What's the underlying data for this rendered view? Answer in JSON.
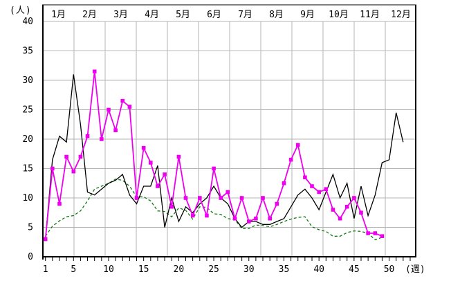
{
  "chart_data": {
    "type": "line",
    "title": "",
    "ylabel_unit": "(人)",
    "xlabel_unit": "(週)",
    "ylim": [
      0,
      40
    ],
    "xlim_weeks": [
      1,
      53
    ],
    "grid": true,
    "legend": "none",
    "y_ticks": [
      0,
      5,
      10,
      15,
      20,
      25,
      30,
      35,
      40
    ],
    "x_ticks": [
      1,
      5,
      10,
      15,
      20,
      25,
      30,
      35,
      40,
      45,
      50
    ],
    "month_labels": [
      "1月",
      "2月",
      "3月",
      "4月",
      "5月",
      "6月",
      "7月",
      "8月",
      "9月",
      "10月",
      "11月",
      "12月"
    ],
    "series": [
      {
        "name": "black-solid-series",
        "color": "#000000",
        "style": "solid",
        "marker": "none",
        "start_week": 1,
        "values": [
          3,
          16.5,
          20.5,
          19.5,
          31,
          22.5,
          11,
          10.5,
          11.5,
          12.5,
          13,
          14,
          10.5,
          9,
          12,
          12,
          15.5,
          5,
          10,
          6,
          8.5,
          7.5,
          9,
          10,
          12,
          10,
          9,
          6.5,
          5,
          6,
          6,
          5.5,
          5.5,
          6,
          6.5,
          8.5,
          10.5,
          11.5,
          10,
          8,
          11,
          14,
          10,
          12.5,
          6.5,
          12,
          7,
          10.5,
          16,
          16.5,
          24.5,
          19.5
        ]
      },
      {
        "name": "magenta-marker-series",
        "color": "#EE00EE",
        "style": "solid",
        "marker": "square",
        "start_week": 1,
        "values": [
          3,
          15,
          9,
          17,
          14.5,
          17,
          20.5,
          31.5,
          20,
          25,
          21.5,
          26.5,
          25.5,
          10,
          18.5,
          16,
          12,
          14,
          8.5,
          17,
          10,
          7,
          10,
          7,
          15,
          10,
          11,
          6.5,
          10,
          6,
          6.5,
          10,
          6.5,
          9,
          12.5,
          16.5,
          19,
          13.5,
          12,
          11,
          11.5,
          8,
          6.5,
          8.5,
          10,
          7.5,
          4,
          4,
          3.5
        ]
      },
      {
        "name": "green-dashed-series",
        "color": "#117a11",
        "style": "dashed",
        "marker": "none",
        "start_week": 1,
        "values": [
          3.5,
          5.2,
          6.1,
          6.8,
          7,
          7.8,
          9.5,
          11.5,
          12,
          12.5,
          13.2,
          13,
          12,
          10.2,
          10.2,
          9.5,
          7.8,
          7.7,
          6.8,
          8.3,
          7.9,
          6.4,
          8.5,
          8.4,
          7.3,
          7.2,
          6.5,
          6.3,
          4.8,
          4.8,
          5.4,
          5.3,
          5.1,
          5.5,
          6,
          6.4,
          6.7,
          6.8,
          5.1,
          4.6,
          4.3,
          3.5,
          3.5,
          4.1,
          4.4,
          4.3,
          4,
          2.9,
          3.3
        ]
      }
    ],
    "colors": {
      "grid": "#b5b5b5",
      "axis": "#000000",
      "background": "#ffffff"
    }
  }
}
